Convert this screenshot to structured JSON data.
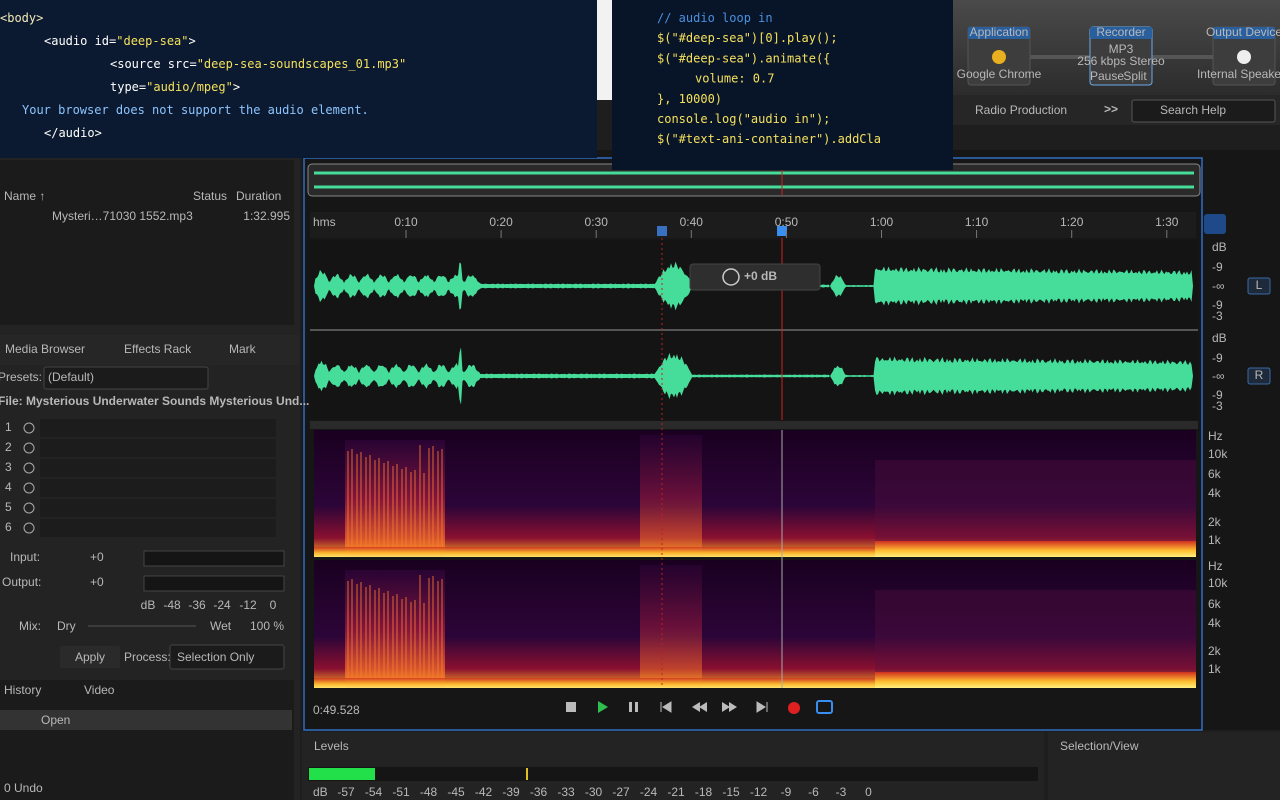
{
  "code_html": {
    "lines": [
      [
        {
          "text": "<body>",
          "color": "#f3e9b8"
        }
      ],
      [
        {
          "text": "<audio id=",
          "color": "#ffffff"
        },
        {
          "text": "\"deep-sea\"",
          "color": "#f5e05c"
        },
        {
          "text": ">",
          "color": "#ffffff"
        }
      ],
      [
        {
          "text": "<source src=",
          "color": "#ffffff"
        },
        {
          "text": "\"deep-sea-soundscapes_01.mp3\"",
          "color": "#f5e05c"
        }
      ],
      [
        {
          "text": "type=",
          "color": "#ffffff"
        },
        {
          "text": "\"audio/mpeg\"",
          "color": "#f5e05c"
        },
        {
          "text": ">",
          "color": "#ffffff"
        }
      ],
      [
        {
          "text": "Your browser does not support the audio element.",
          "color": "#8cc4ff"
        }
      ],
      [
        {
          "text": "</audio>",
          "color": "#ffffff"
        }
      ]
    ]
  },
  "code_js": {
    "lines": [
      [
        {
          "text": "// audio loop in",
          "color": "#4b8fe0"
        }
      ],
      [
        {
          "text": "$(\"#deep-sea\")[0].play();",
          "color": "#f5e05c"
        }
      ],
      [
        {
          "text": "$(\"#deep-sea\").animate({",
          "color": "#f5e05c"
        }
      ],
      [
        {
          "text": "volume: 0.7",
          "color": "#f5e05c"
        }
      ],
      [
        {
          "text": "}, 10000)",
          "color": "#f5e05c"
        }
      ],
      [
        {
          "text": "console.log(\"audio in\");",
          "color": "#f5e05c"
        }
      ],
      [
        {
          "text": "$(\"#text-ani-container\").addCla",
          "color": "#f5e05c"
        }
      ]
    ]
  },
  "routing": {
    "nodes": [
      {
        "header": "Application",
        "label": "Google Chrome"
      },
      {
        "header": "Recorder",
        "label": "MP3",
        "detail": "256 kbps Stereo",
        "buttons": [
          "Pause",
          "Split"
        ]
      },
      {
        "header": "Output Device",
        "label": "Internal Speakers"
      }
    ]
  },
  "toolbar": {
    "workspace": "Radio Production",
    "more": ">>",
    "search": "Search Help"
  },
  "files": {
    "columns": [
      "Name ↑",
      "Status",
      "Duration"
    ],
    "rows": [
      {
        "name": "Mysteri…71030 1552.mp3",
        "duration": "1:32.995"
      }
    ]
  },
  "effects": {
    "tabs": [
      "Media Browser",
      "Effects Rack",
      "Mark"
    ],
    "presets_label": "Presets:",
    "preset": "(Default)",
    "file": "File: Mysterious Underwater Sounds Mysterious Und...",
    "slots": [
      "1",
      "2",
      "3",
      "4",
      "5",
      "6"
    ],
    "input_label": "Input:",
    "input_gain": "+0",
    "output_label": "Output:",
    "output_gain": "+0",
    "meter_scale": [
      "dB",
      "-48",
      "-36",
      "-24",
      "-12",
      "0"
    ],
    "mix_label": "Mix:",
    "mix_dry": "Dry",
    "mix_wet": "Wet",
    "mix_value": "100 %",
    "apply": "Apply",
    "process_label": "Process:",
    "process": "Selection Only"
  },
  "history": {
    "tabs": [
      "History",
      "Video"
    ],
    "items": [
      "Open"
    ],
    "undo": "0 Undo"
  },
  "editor": {
    "timeline": [
      "hms",
      "0:10",
      "0:20",
      "0:30",
      "0:40",
      "0:50",
      "1:00",
      "1:10",
      "1:20",
      "1:30"
    ],
    "db_scale": [
      [
        "dB",
        "-9",
        "-∞",
        "-9",
        "-3"
      ],
      [
        "dB",
        "-9",
        "-∞",
        "-9",
        "-3"
      ]
    ],
    "channels": [
      "L",
      "R"
    ],
    "hud_gain": "+0 dB",
    "hz_scale": [
      [
        "Hz",
        "10k",
        "6k",
        "4k",
        "2k",
        "1k"
      ],
      [
        "Hz",
        "10k",
        "6k",
        "4k",
        "2k",
        "1k"
      ]
    ],
    "time": "0:49.528"
  },
  "levels": {
    "title": "Levels",
    "scale": [
      "dB",
      "-57",
      "-54",
      "-51",
      "-48",
      "-45",
      "-42",
      "-39",
      "-36",
      "-33",
      "-30",
      "-27",
      "-24",
      "-21",
      "-18",
      "-15",
      "-12",
      "-9",
      "-6",
      "-3",
      "0"
    ]
  },
  "selection_view": {
    "title": "Selection/View"
  }
}
